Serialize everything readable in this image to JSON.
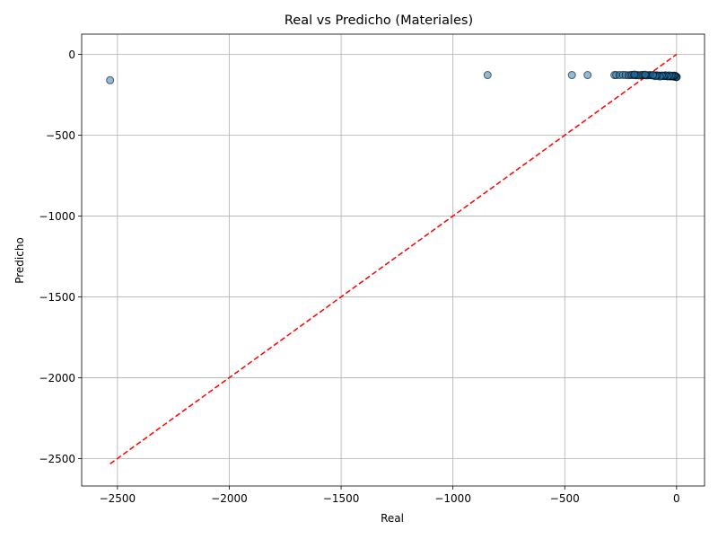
{
  "chart_data": {
    "type": "scatter",
    "title": "Real vs Predicho (Materiales)",
    "xlabel": "Real",
    "ylabel": "Predicho",
    "xlim": [
      -2660,
      125
    ],
    "ylim": [
      -2670,
      125
    ],
    "xticks": [
      -2500,
      -2000,
      -1500,
      -1000,
      -500,
      0
    ],
    "yticks": [
      0,
      -500,
      -1000,
      -1500,
      -2000,
      -2500
    ],
    "xtick_labels": [
      "−2500",
      "−2000",
      "−1500",
      "−1000",
      "−500",
      "0"
    ],
    "ytick_labels": [
      "0",
      "−500",
      "−1000",
      "−1500",
      "−2000",
      "−2500"
    ],
    "grid": true,
    "point_color": "#1f77b4",
    "point_edge_color": "#000000",
    "reference_line": {
      "x": [
        -2533,
        0
      ],
      "y": [
        -2533,
        0
      ],
      "color": "#ff0000",
      "style": "dashed"
    },
    "points": {
      "x": [
        -2533,
        -845,
        -468,
        -398,
        -278,
        -270,
        -255,
        -240,
        -228,
        -215,
        -205,
        -198,
        -190,
        -182,
        -175,
        -168,
        -160,
        -152,
        -145,
        -138,
        -130,
        -122,
        -115,
        -108,
        -100,
        -92,
        -85,
        -78,
        -70,
        -62,
        -55,
        -48,
        -42,
        -36,
        -30,
        -24,
        -18,
        -12,
        -8,
        -5,
        -3,
        -2,
        -1,
        0,
        0,
        -6,
        -10,
        -15,
        -20,
        -26,
        -33,
        -40,
        -50,
        -58,
        -66,
        -75,
        -88,
        -95,
        -105,
        -140,
        -188
      ],
      "y": [
        -160,
        -128,
        -128,
        -128,
        -128,
        -128,
        -128,
        -127,
        -128,
        -129,
        -128,
        -127,
        -128,
        -129,
        -128,
        -130,
        -128,
        -127,
        -128,
        -129,
        -130,
        -128,
        -129,
        -130,
        -131,
        -130,
        -132,
        -131,
        -133,
        -132,
        -134,
        -133,
        -135,
        -134,
        -136,
        -135,
        -137,
        -136,
        -138,
        -137,
        -139,
        -138,
        -140,
        -139,
        -141,
        -133,
        -131,
        -134,
        -132,
        -135,
        -130,
        -136,
        -129,
        -134,
        -131,
        -137,
        -130,
        -135,
        -128,
        -126,
        -125
      ]
    }
  }
}
